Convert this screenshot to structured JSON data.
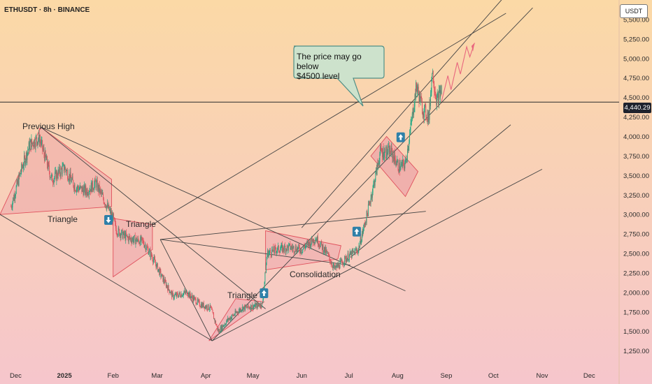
{
  "header": {
    "title": "ETHUSDT · 8h · BINANCE"
  },
  "axis": {
    "currency": "USDT",
    "current_price_label": "4,440.29"
  },
  "annotations": {
    "previous_high": "Previous High",
    "triangle_1": "Triangle",
    "triangle_2": "Triangle",
    "triangle_3": "Triangle",
    "consolidation": "Consolidation"
  },
  "callout": {
    "line1": "The price may go below",
    "line2": "$4500 level"
  },
  "chart_data": {
    "type": "line",
    "title": "ETHUSDT · 8h · BINANCE",
    "xlabel": "",
    "ylabel": "",
    "x": [
      "2024-11-28",
      "2024-12-05",
      "2024-12-10",
      "2024-12-16",
      "2024-12-24",
      "2025-01-01",
      "2025-01-08",
      "2025-01-15",
      "2025-01-21",
      "2025-01-27",
      "2025-02-01",
      "2025-02-03",
      "2025-02-10",
      "2025-02-20",
      "2025-02-26",
      "2025-03-04",
      "2025-03-11",
      "2025-03-20",
      "2025-03-28",
      "2025-04-04",
      "2025-04-09",
      "2025-04-15",
      "2025-04-24",
      "2025-05-01",
      "2025-05-07",
      "2025-05-10",
      "2025-05-16",
      "2025-05-24",
      "2025-06-01",
      "2025-06-10",
      "2025-06-17",
      "2025-06-22",
      "2025-06-30",
      "2025-07-07",
      "2025-07-12",
      "2025-07-17",
      "2025-07-21",
      "2025-07-28",
      "2025-08-02",
      "2025-08-06",
      "2025-08-10",
      "2025-08-13",
      "2025-08-17",
      "2025-08-21",
      "2025-08-23",
      "2025-08-26",
      "2025-08-29"
    ],
    "series": [
      {
        "values": [
          3100,
          3600,
          3900,
          3980,
          3450,
          3600,
          3350,
          3300,
          3400,
          3150,
          2950,
          2800,
          2700,
          2650,
          2450,
          2200,
          1950,
          2000,
          1850,
          1800,
          1500,
          1650,
          1800,
          1820,
          1850,
          2500,
          2550,
          2580,
          2550,
          2700,
          2500,
          2300,
          2450,
          2550,
          2950,
          3400,
          3800,
          3800,
          3600,
          3650,
          4200,
          4650,
          4350,
          4250,
          4850,
          4450,
          4600
        ]
      }
    ],
    "ylim": [
      1050,
      5750
    ],
    "yticks": [
      "5,500.00",
      "5,250.00",
      "5,000.00",
      "4,750.00",
      "4,500.00",
      "4,250.00",
      "4,000.00",
      "3,750.00",
      "3,500.00",
      "3,250.00",
      "3,000.00",
      "2,750.00",
      "2,500.00",
      "2,250.00",
      "2,000.00",
      "1,750.00",
      "1,500.00",
      "1,250.00"
    ],
    "ytick_values": [
      5500,
      5250,
      5000,
      4750,
      4500,
      4250,
      4000,
      3750,
      3500,
      3250,
      3000,
      2750,
      2500,
      2250,
      2000,
      1750,
      1500,
      1250
    ],
    "xticks": [
      "Dec",
      "2025",
      "Feb",
      "Mar",
      "Apr",
      "May",
      "Jun",
      "Jul",
      "Aug",
      "Sep",
      "Oct",
      "Nov",
      "Dec"
    ],
    "xtick_dates": [
      "2024-12-01",
      "2025-01-01",
      "2025-02-01",
      "2025-03-01",
      "2025-04-01",
      "2025-05-01",
      "2025-06-01",
      "2025-07-01",
      "2025-08-01",
      "2025-09-01",
      "2025-10-01",
      "2025-11-01",
      "2025-12-01"
    ],
    "x_range": [
      "2024-11-21",
      "2025-12-20"
    ],
    "horizontal_line_value": 4440.29,
    "grid": false,
    "legend": "none",
    "colors": {
      "background_top": "#fbd9a6",
      "background_bottom": "#f6c6cc",
      "up": "#22a884",
      "down": "#e0505c",
      "trendline": "#444444",
      "pattern_fill": "#e78fa0",
      "arrow_marker": "#2f80a8",
      "callout_fill": "#cde2cc",
      "callout_border": "#4f8f86",
      "projection": "#e8667e"
    }
  }
}
